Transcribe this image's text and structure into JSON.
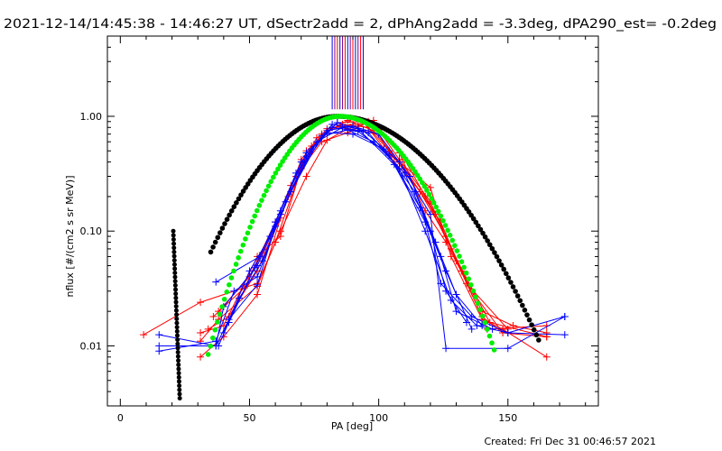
{
  "chart_data": {
    "type": "line",
    "title": "2021-12-14/14:45:38 - 14:46:27 UT, dSectr2add = 2, dPhAng2add = -3.3deg, dPA290_est= -0.2deg",
    "xlabel": "PA [deg]",
    "ylabel": "nflux [#/(cm2 s sr MeV)]",
    "xlim": [
      -5,
      185
    ],
    "ylim": [
      0.003,
      5
    ],
    "yscale": "log",
    "x_ticks": [
      {
        "value": 0,
        "label": "0"
      },
      {
        "value": 50,
        "label": "50"
      },
      {
        "value": 100,
        "label": "100"
      },
      {
        "value": 150,
        "label": "150"
      }
    ],
    "y_ticks": [
      {
        "value": 0.01,
        "label": "0.01"
      },
      {
        "value": 0.1,
        "label": "0.10"
      },
      {
        "value": 1,
        "label": "1.00"
      }
    ],
    "footer": "Created: Fri Dec 31 00:46:57 2021",
    "colors": {
      "red": "#ff0000",
      "blue": "#0000ff",
      "black": "#000000",
      "green": "#00ee00",
      "purple": "#800080"
    },
    "vertical_lines": {
      "color_sequence": [
        "#0000ff",
        "#800080",
        "#ff0000",
        "#0000ff",
        "#800080",
        "#ff0000",
        "#0000ff",
        "#800080",
        "#ff0000",
        "#0000ff",
        "#800080",
        "#ff0000",
        "#0000ff"
      ],
      "x": [
        82,
        83,
        84,
        85,
        86,
        87,
        88,
        89,
        90,
        91,
        92,
        93,
        94
      ],
      "y_from": 1.15,
      "y_to": 5
    },
    "series": [
      {
        "color": "red",
        "points": [
          [
            9,
            0.0125
          ],
          [
            31,
            0.024
          ],
          [
            53,
            0.035
          ],
          [
            62,
            0.1
          ],
          [
            72,
            0.3
          ],
          [
            80,
            0.62
          ],
          [
            88,
            0.78
          ],
          [
            100,
            0.7
          ],
          [
            105,
            0.45
          ],
          [
            120,
            0.24
          ],
          [
            128,
            0.06
          ],
          [
            140,
            0.017
          ],
          [
            148,
            0.014
          ],
          [
            165,
            0.008
          ]
        ]
      },
      {
        "color": "red",
        "points": [
          [
            31,
            0.008
          ],
          [
            40,
            0.012
          ],
          [
            53,
            0.028
          ],
          [
            62,
            0.13
          ],
          [
            70,
            0.42
          ],
          [
            80,
            0.78
          ],
          [
            90,
            0.85
          ],
          [
            98,
            0.88
          ],
          [
            108,
            0.42
          ],
          [
            120,
            0.18
          ],
          [
            130,
            0.055
          ],
          [
            140,
            0.018
          ],
          [
            148,
            0.013
          ],
          [
            165,
            0.012
          ]
        ]
      },
      {
        "color": "red",
        "points": [
          [
            31,
            0.011
          ],
          [
            38,
            0.017
          ],
          [
            53,
            0.033
          ],
          [
            60,
            0.08
          ],
          [
            70,
            0.35
          ],
          [
            78,
            0.6
          ],
          [
            88,
            0.72
          ],
          [
            96,
            0.9
          ],
          [
            108,
            0.48
          ],
          [
            118,
            0.15
          ],
          [
            126,
            0.08
          ],
          [
            140,
            0.02
          ],
          [
            152,
            0.015
          ],
          [
            165,
            0.013
          ]
        ]
      },
      {
        "color": "red",
        "points": [
          [
            31,
            0.013
          ],
          [
            40,
            0.015
          ],
          [
            53,
            0.06
          ],
          [
            62,
            0.09
          ],
          [
            72,
            0.5
          ],
          [
            82,
            0.8
          ],
          [
            92,
            0.82
          ],
          [
            98,
            0.92
          ],
          [
            110,
            0.42
          ],
          [
            122,
            0.14
          ],
          [
            132,
            0.045
          ],
          [
            142,
            0.014
          ],
          [
            165,
            0.015
          ]
        ]
      },
      {
        "color": "red",
        "points": [
          [
            34,
            0.014
          ],
          [
            42,
            0.018
          ],
          [
            53,
            0.045
          ],
          [
            65,
            0.2
          ],
          [
            74,
            0.55
          ],
          [
            84,
            0.88
          ],
          [
            94,
            0.9
          ],
          [
            106,
            0.4
          ],
          [
            118,
            0.2
          ],
          [
            128,
            0.07
          ],
          [
            143,
            0.016
          ],
          [
            165,
            0.012
          ]
        ]
      },
      {
        "color": "red",
        "points": [
          [
            36,
            0.018
          ],
          [
            48,
            0.032
          ],
          [
            55,
            0.065
          ],
          [
            66,
            0.25
          ],
          [
            76,
            0.65
          ],
          [
            86,
            0.85
          ],
          [
            96,
            0.8
          ],
          [
            104,
            0.5
          ],
          [
            116,
            0.22
          ],
          [
            126,
            0.09
          ],
          [
            136,
            0.03
          ],
          [
            148,
            0.013
          ]
        ]
      },
      {
        "color": "red",
        "points": [
          [
            38,
            0.02
          ],
          [
            50,
            0.04
          ],
          [
            60,
            0.12
          ],
          [
            68,
            0.3
          ],
          [
            78,
            0.7
          ],
          [
            88,
            0.92
          ],
          [
            98,
            0.75
          ],
          [
            110,
            0.35
          ],
          [
            124,
            0.12
          ],
          [
            134,
            0.035
          ],
          [
            150,
            0.014
          ]
        ]
      },
      {
        "color": "blue",
        "points": [
          [
            15,
            0.0125
          ],
          [
            37,
            0.01
          ],
          [
            42,
            0.017
          ],
          [
            53,
            0.034
          ],
          [
            60,
            0.11
          ],
          [
            72,
            0.45
          ],
          [
            82,
            0.85
          ],
          [
            92,
            0.78
          ],
          [
            106,
            0.38
          ],
          [
            118,
            0.12
          ],
          [
            124,
            0.035
          ],
          [
            136,
            0.018
          ],
          [
            150,
            0.013
          ],
          [
            172,
            0.0125
          ]
        ]
      },
      {
        "color": "blue",
        "points": [
          [
            15,
            0.01
          ],
          [
            37,
            0.01
          ],
          [
            40,
            0.022
          ],
          [
            53,
            0.05
          ],
          [
            62,
            0.14
          ],
          [
            74,
            0.52
          ],
          [
            84,
            0.88
          ],
          [
            94,
            0.75
          ],
          [
            108,
            0.4
          ],
          [
            120,
            0.14
          ],
          [
            126,
            0.0095
          ],
          [
            150,
            0.0095
          ],
          [
            172,
            0.018
          ]
        ]
      },
      {
        "color": "blue",
        "points": [
          [
            15,
            0.009
          ],
          [
            37,
            0.011
          ],
          [
            44,
            0.03
          ],
          [
            53,
            0.04
          ],
          [
            64,
            0.18
          ],
          [
            76,
            0.6
          ],
          [
            86,
            0.8
          ],
          [
            96,
            0.72
          ],
          [
            108,
            0.35
          ],
          [
            118,
            0.1
          ],
          [
            128,
            0.025
          ],
          [
            138,
            0.015
          ],
          [
            150,
            0.013
          ],
          [
            172,
            0.018
          ]
        ]
      },
      {
        "color": "blue",
        "points": [
          [
            37,
            0.036
          ],
          [
            54,
            0.06
          ],
          [
            60,
            0.12
          ],
          [
            70,
            0.4
          ],
          [
            80,
            0.75
          ],
          [
            90,
            0.82
          ],
          [
            100,
            0.7
          ],
          [
            112,
            0.3
          ],
          [
            122,
            0.08
          ],
          [
            130,
            0.028
          ],
          [
            140,
            0.015
          ]
        ]
      },
      {
        "color": "blue",
        "points": [
          [
            38,
            0.01
          ],
          [
            46,
            0.026
          ],
          [
            55,
            0.055
          ],
          [
            66,
            0.22
          ],
          [
            78,
            0.68
          ],
          [
            88,
            0.76
          ],
          [
            98,
            0.6
          ],
          [
            110,
            0.32
          ],
          [
            120,
            0.1
          ],
          [
            126,
            0.03
          ],
          [
            134,
            0.016
          ]
        ]
      },
      {
        "color": "blue",
        "points": [
          [
            40,
            0.013
          ],
          [
            50,
            0.045
          ],
          [
            58,
            0.09
          ],
          [
            68,
            0.32
          ],
          [
            80,
            0.72
          ],
          [
            90,
            0.7
          ],
          [
            102,
            0.52
          ],
          [
            114,
            0.22
          ],
          [
            124,
            0.06
          ],
          [
            130,
            0.02
          ],
          [
            144,
            0.014
          ]
        ]
      },
      {
        "color": "blue",
        "points": [
          [
            42,
            0.016
          ],
          [
            52,
            0.048
          ],
          [
            62,
            0.15
          ],
          [
            72,
            0.48
          ],
          [
            82,
            0.8
          ],
          [
            92,
            0.74
          ],
          [
            104,
            0.46
          ],
          [
            116,
            0.16
          ],
          [
            126,
            0.045
          ],
          [
            136,
            0.014
          ]
        ]
      }
    ],
    "reference_curves": [
      {
        "color": "black",
        "shape": "gaussian",
        "x_range": [
          35,
          162
        ],
        "center": 84,
        "sigma_left": 21,
        "sigma_right": 26,
        "peak": 1.0
      },
      {
        "color": "black",
        "shape": "vertical-dots",
        "x_range": [
          20.5,
          23
        ],
        "y_from": 0.0035,
        "y_to": 0.1
      },
      {
        "color": "green",
        "shape": "gaussian",
        "x_range": [
          34,
          145
        ],
        "center": 85,
        "sigma_left": 16.5,
        "sigma_right": 19.5,
        "peak": 1.0
      }
    ]
  }
}
